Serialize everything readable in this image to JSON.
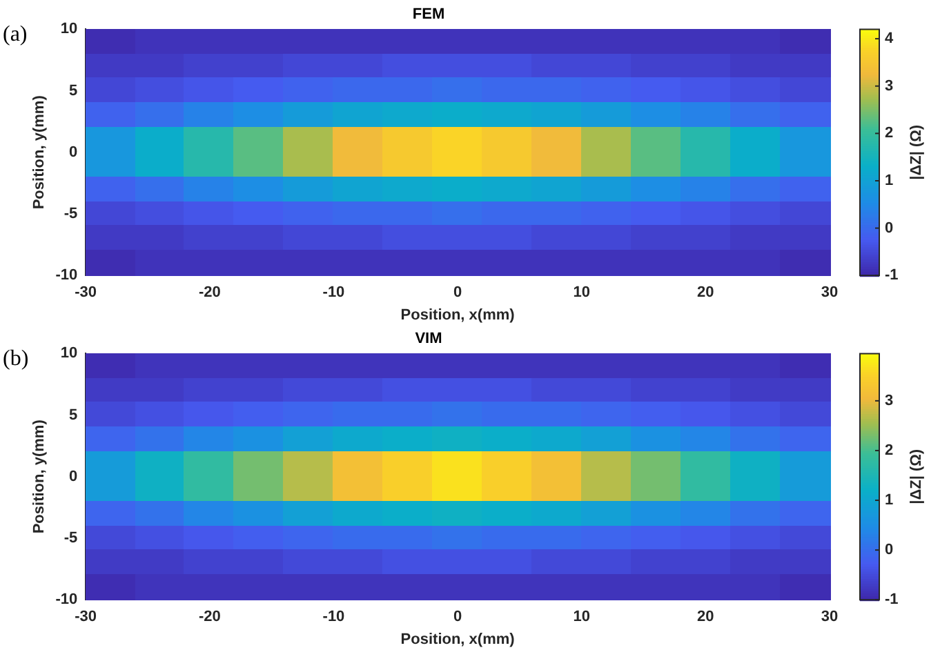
{
  "chart_data": [
    {
      "type": "heatmap",
      "title": "FEM",
      "xlabel": "Position, x(mm)",
      "ylabel": "Position, y(mm)",
      "clabel": "|ΔZ| (Ω)",
      "annotations": [
        "(a)"
      ],
      "x": [
        -28,
        -24,
        -20,
        -16,
        -12,
        -8,
        -4,
        0,
        4,
        8,
        12,
        16,
        20,
        24,
        28
      ],
      "y": [
        9,
        7,
        5,
        3,
        1,
        -1,
        -3,
        -5,
        -7,
        -9
      ],
      "xlim": [
        -30,
        30
      ],
      "xticks": [
        -30,
        -20,
        -10,
        0,
        10,
        20,
        30
      ],
      "ylim": [
        -10,
        10
      ],
      "yticks": [
        -10,
        -5,
        0,
        5,
        10
      ],
      "clim": [
        -1,
        4.2
      ],
      "cticks": [
        -1,
        0,
        1,
        2,
        3,
        4
      ],
      "cells": [
        [
          -0.9,
          -0.8,
          -0.8,
          -0.8,
          -0.8,
          -0.8,
          -0.8,
          -0.8,
          -0.8,
          -0.8,
          -0.8,
          -0.8,
          -0.8,
          -0.8,
          -0.9
        ],
        [
          -0.7,
          -0.7,
          -0.6,
          -0.6,
          -0.5,
          -0.5,
          -0.4,
          -0.4,
          -0.4,
          -0.5,
          -0.5,
          -0.6,
          -0.6,
          -0.7,
          -0.7
        ],
        [
          -0.5,
          -0.4,
          -0.3,
          -0.2,
          -0.1,
          0.0,
          0.0,
          0.1,
          0.0,
          0.0,
          -0.1,
          -0.2,
          -0.3,
          -0.4,
          -0.5
        ],
        [
          -0.1,
          0.1,
          0.4,
          0.6,
          0.9,
          1.1,
          1.2,
          1.3,
          1.2,
          1.1,
          0.9,
          0.6,
          0.4,
          0.1,
          -0.1
        ],
        [
          0.8,
          1.3,
          1.8,
          2.3,
          2.8,
          3.3,
          3.6,
          3.8,
          3.6,
          3.3,
          2.8,
          2.3,
          1.8,
          1.3,
          0.8
        ],
        [
          0.8,
          1.3,
          1.8,
          2.3,
          2.8,
          3.3,
          3.6,
          3.8,
          3.6,
          3.3,
          2.8,
          2.3,
          1.8,
          1.3,
          0.8
        ],
        [
          -0.1,
          0.1,
          0.4,
          0.6,
          0.9,
          1.1,
          1.2,
          1.3,
          1.2,
          1.1,
          0.9,
          0.6,
          0.4,
          0.1,
          -0.1
        ],
        [
          -0.5,
          -0.4,
          -0.3,
          -0.2,
          -0.1,
          0.0,
          0.0,
          0.1,
          0.0,
          0.0,
          -0.1,
          -0.2,
          -0.3,
          -0.4,
          -0.5
        ],
        [
          -0.7,
          -0.7,
          -0.6,
          -0.6,
          -0.5,
          -0.5,
          -0.4,
          -0.4,
          -0.4,
          -0.5,
          -0.5,
          -0.6,
          -0.6,
          -0.7,
          -0.7
        ],
        [
          -0.9,
          -0.8,
          -0.8,
          -0.8,
          -0.8,
          -0.8,
          -0.8,
          -0.8,
          -0.8,
          -0.8,
          -0.8,
          -0.8,
          -0.8,
          -0.8,
          -0.9
        ]
      ]
    },
    {
      "type": "heatmap",
      "title": "VIM",
      "xlabel": "Position, x(mm)",
      "ylabel": "Position, y(mm)",
      "clabel": "|ΔZ| (Ω)",
      "annotations": [
        "(b)"
      ],
      "x": [
        -28,
        -24,
        -20,
        -16,
        -12,
        -8,
        -4,
        0,
        4,
        8,
        12,
        16,
        20,
        24,
        28
      ],
      "y": [
        9,
        7,
        5,
        3,
        1,
        -1,
        -3,
        -5,
        -7,
        -9
      ],
      "xlim": [
        -30,
        30
      ],
      "xticks": [
        -30,
        -20,
        -10,
        0,
        10,
        20,
        30
      ],
      "ylim": [
        -10,
        10
      ],
      "yticks": [
        -10,
        -5,
        0,
        5,
        10
      ],
      "clim": [
        -1,
        3.95
      ],
      "cticks": [
        -1,
        0,
        1,
        2,
        3
      ],
      "cells": [
        [
          -0.9,
          -0.8,
          -0.8,
          -0.8,
          -0.8,
          -0.8,
          -0.8,
          -0.8,
          -0.8,
          -0.8,
          -0.8,
          -0.8,
          -0.8,
          -0.8,
          -0.9
        ],
        [
          -0.7,
          -0.7,
          -0.6,
          -0.6,
          -0.5,
          -0.5,
          -0.4,
          -0.4,
          -0.4,
          -0.5,
          -0.5,
          -0.6,
          -0.6,
          -0.7,
          -0.7
        ],
        [
          -0.5,
          -0.4,
          -0.3,
          -0.2,
          -0.1,
          0.0,
          0.0,
          0.1,
          0.0,
          0.0,
          -0.1,
          -0.2,
          -0.3,
          -0.4,
          -0.5
        ],
        [
          -0.1,
          0.1,
          0.4,
          0.6,
          0.9,
          1.1,
          1.2,
          1.3,
          1.2,
          1.1,
          0.9,
          0.6,
          0.4,
          0.1,
          -0.1
        ],
        [
          0.8,
          1.3,
          1.8,
          2.3,
          2.7,
          3.2,
          3.5,
          3.7,
          3.5,
          3.2,
          2.7,
          2.3,
          1.8,
          1.3,
          0.8
        ],
        [
          0.8,
          1.3,
          1.8,
          2.3,
          2.7,
          3.2,
          3.5,
          3.7,
          3.5,
          3.2,
          2.7,
          2.3,
          1.8,
          1.3,
          0.8
        ],
        [
          -0.1,
          0.1,
          0.4,
          0.6,
          0.9,
          1.1,
          1.2,
          1.3,
          1.2,
          1.1,
          0.9,
          0.6,
          0.4,
          0.1,
          -0.1
        ],
        [
          -0.5,
          -0.4,
          -0.3,
          -0.2,
          -0.1,
          0.0,
          0.0,
          0.1,
          0.0,
          0.0,
          -0.1,
          -0.2,
          -0.3,
          -0.4,
          -0.5
        ],
        [
          -0.7,
          -0.7,
          -0.6,
          -0.6,
          -0.5,
          -0.5,
          -0.4,
          -0.4,
          -0.4,
          -0.5,
          -0.5,
          -0.6,
          -0.6,
          -0.7,
          -0.7
        ],
        [
          -0.9,
          -0.8,
          -0.8,
          -0.8,
          -0.8,
          -0.8,
          -0.8,
          -0.8,
          -0.8,
          -0.8,
          -0.8,
          -0.8,
          -0.8,
          -0.8,
          -0.9
        ]
      ]
    }
  ]
}
